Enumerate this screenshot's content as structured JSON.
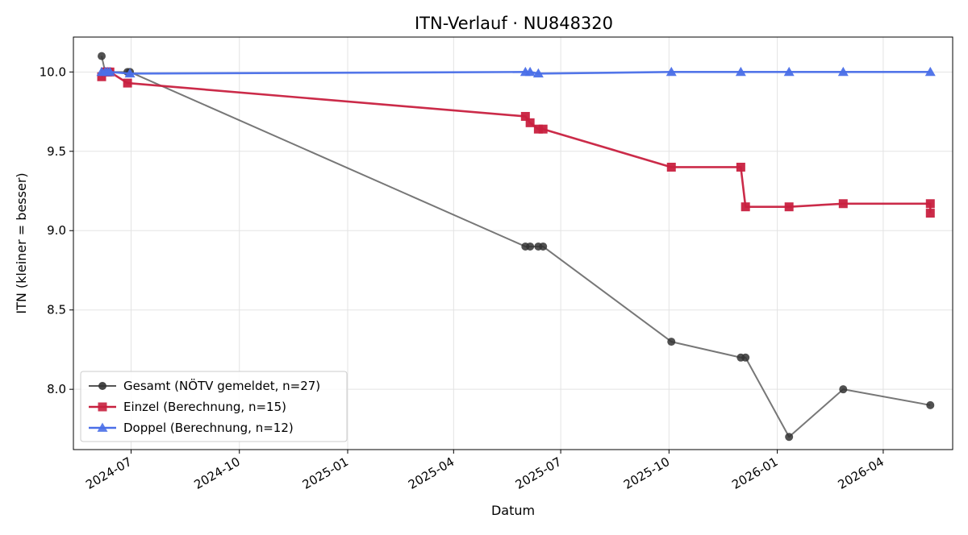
{
  "chart_data": {
    "type": "line",
    "title": "ITN-Verlauf · NU848320",
    "xlabel": "Datum",
    "ylabel": "ITN  (kleiner = besser)",
    "x_ticks": [
      "2024-07",
      "2024-10",
      "2025-01",
      "2025-04",
      "2025-07",
      "2025-10",
      "2026-01",
      "2026-04"
    ],
    "y_ticks": [
      "8.0",
      "8.5",
      "9.0",
      "9.5",
      "10.0"
    ],
    "y_tick_values": [
      8.0,
      8.5,
      9.0,
      9.5,
      10.0
    ],
    "xlim": [
      "2024-05-13",
      "2026-05-30"
    ],
    "ylim": [
      7.62,
      10.22
    ],
    "grid": true,
    "legend_position": "lower-left",
    "series": [
      {
        "name": "Gesamt (NÖTV gemeldet, n=27)",
        "color": "#555555",
        "marker": "circle",
        "points": [
          [
            "2024-06-06",
            10.1
          ],
          [
            "2024-06-09",
            10.0
          ],
          [
            "2024-06-11",
            10.0
          ],
          [
            "2024-06-13",
            10.0
          ],
          [
            "2024-06-28",
            10.0
          ],
          [
            "2024-06-30",
            10.0
          ],
          [
            "2025-06-01",
            8.9
          ],
          [
            "2025-06-05",
            8.9
          ],
          [
            "2025-06-12",
            8.9
          ],
          [
            "2025-06-16",
            8.9
          ],
          [
            "2025-10-03",
            8.3
          ],
          [
            "2025-12-01",
            8.2
          ],
          [
            "2025-12-05",
            8.2
          ],
          [
            "2026-01-11",
            7.7
          ],
          [
            "2026-02-26",
            8.0
          ],
          [
            "2026-05-11",
            7.9
          ]
        ]
      },
      {
        "name": "Einzel (Berechnung, n=15)",
        "color": "#c8203f",
        "marker": "square",
        "points": [
          [
            "2024-06-06",
            9.97
          ],
          [
            "2024-06-09",
            10.0
          ],
          [
            "2024-06-11",
            10.0
          ],
          [
            "2024-06-13",
            10.0
          ],
          [
            "2024-06-28",
            9.93
          ],
          [
            "2025-06-01",
            9.72
          ],
          [
            "2025-06-05",
            9.68
          ],
          [
            "2025-06-12",
            9.64
          ],
          [
            "2025-06-16",
            9.64
          ],
          [
            "2025-10-03",
            9.4
          ],
          [
            "2025-12-01",
            9.4
          ],
          [
            "2025-12-05",
            9.15
          ],
          [
            "2026-01-11",
            9.15
          ],
          [
            "2026-02-26",
            9.17
          ],
          [
            "2026-05-11",
            9.17
          ],
          [
            "2026-05-11",
            9.11
          ]
        ]
      },
      {
        "name": "Doppel (Berechnung, n=12)",
        "color": "#4a6fe8",
        "marker": "triangle",
        "points": [
          [
            "2024-06-06",
            10.0
          ],
          [
            "2024-06-09",
            10.0
          ],
          [
            "2024-06-11",
            10.0
          ],
          [
            "2024-06-13",
            10.0
          ],
          [
            "2024-06-30",
            9.99
          ],
          [
            "2025-06-01",
            10.0
          ],
          [
            "2025-06-05",
            10.0
          ],
          [
            "2025-06-12",
            9.99
          ],
          [
            "2025-10-03",
            10.0
          ],
          [
            "2025-12-01",
            10.0
          ],
          [
            "2026-01-11",
            10.0
          ],
          [
            "2026-02-26",
            10.0
          ],
          [
            "2026-05-11",
            10.0
          ]
        ]
      }
    ]
  }
}
